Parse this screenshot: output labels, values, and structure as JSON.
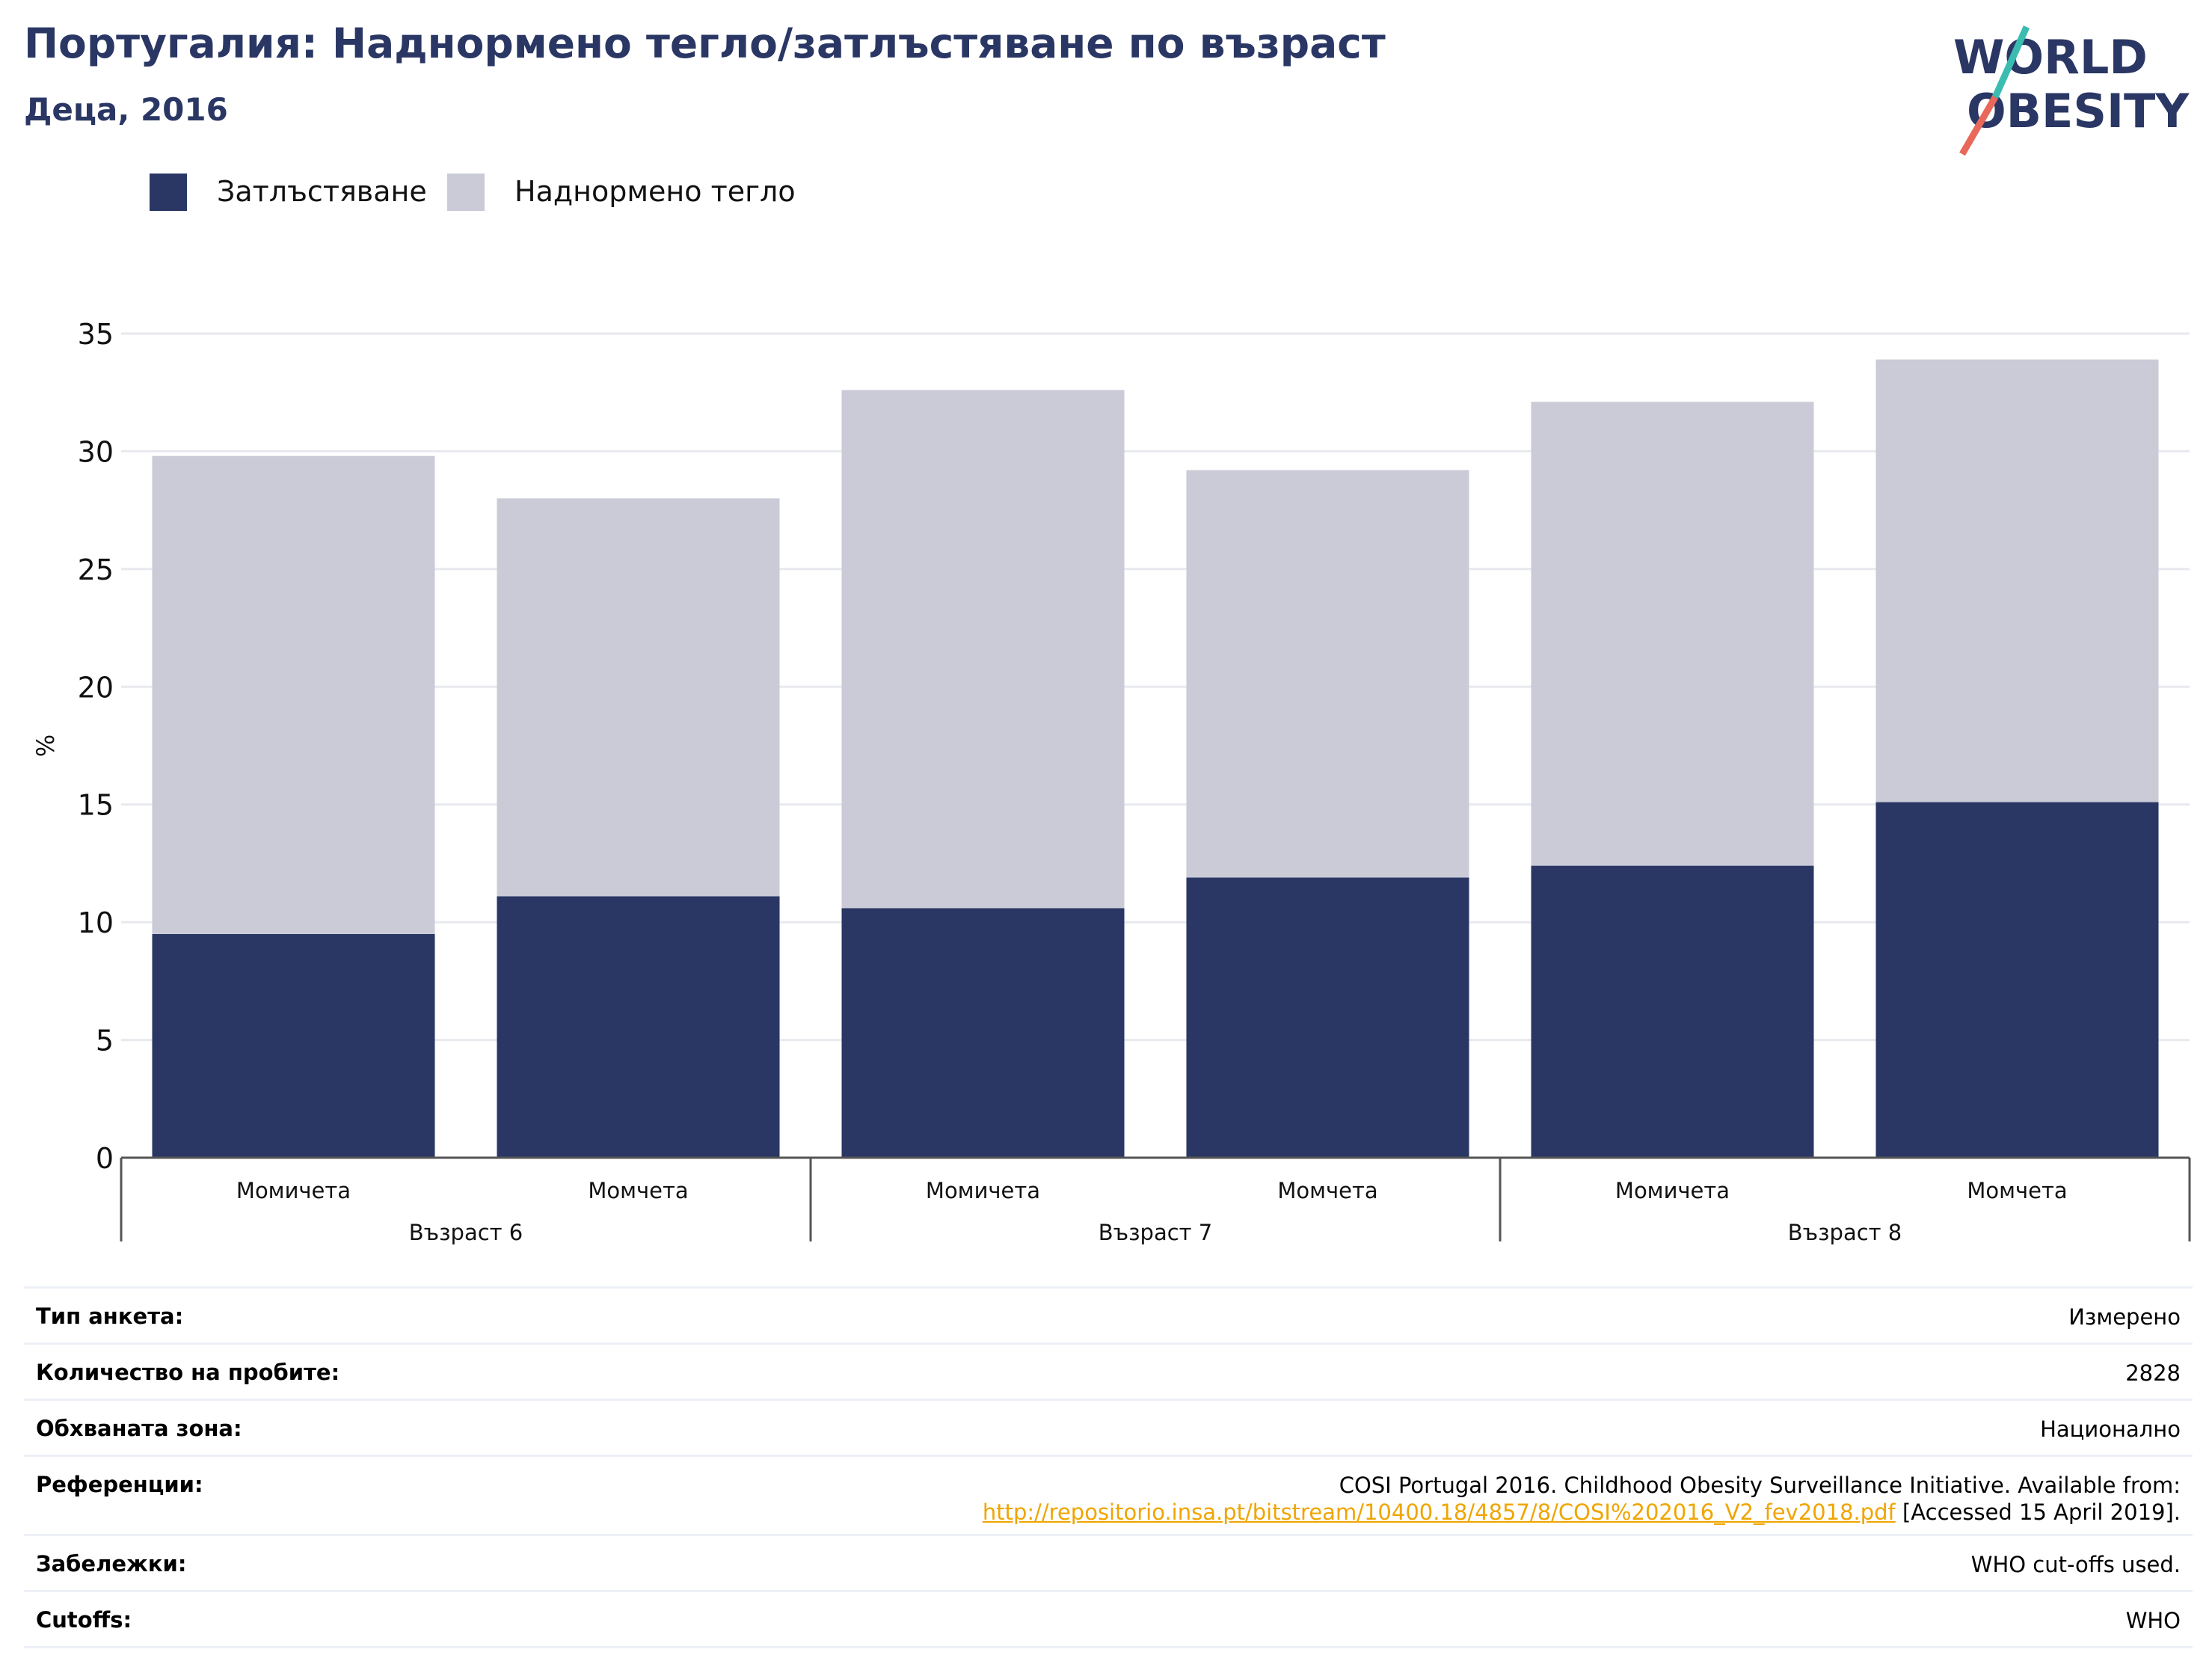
{
  "header": {
    "title": "Португалия: Наднормено тегло/затлъстяване по възраст",
    "subtitle": "Деца, 2016"
  },
  "logo": {
    "line1": "WORLD",
    "line2": "OBESITY"
  },
  "legend": {
    "items": [
      {
        "label": "Затлъстяване",
        "color": "#2a3764"
      },
      {
        "label": "Наднормено тегло",
        "color": "#cacbd7"
      }
    ]
  },
  "chart_data": {
    "type": "bar",
    "stacked": true,
    "ylabel": "%",
    "ylim": [
      0,
      35
    ],
    "yticks": [
      0,
      5,
      10,
      15,
      20,
      25,
      30,
      35
    ],
    "grid": true,
    "legend_position": "top-left",
    "groups": [
      "Възраст 6",
      "Възраст 7",
      "Възраст 8"
    ],
    "categories": [
      "Момичета",
      "Момчета",
      "Момичета",
      "Момчета",
      "Момичета",
      "Момчета"
    ],
    "category_group": [
      0,
      0,
      1,
      1,
      2,
      2
    ],
    "series": [
      {
        "name": "Затлъстяване",
        "color": "#2a3764",
        "values": [
          9.5,
          11.1,
          10.6,
          11.9,
          12.4,
          15.1
        ]
      },
      {
        "name": "Наднормено тегло",
        "color": "#cacbd7",
        "values": [
          20.3,
          16.9,
          22.0,
          17.3,
          19.7,
          18.8
        ]
      }
    ]
  },
  "info": {
    "rows": [
      {
        "label": "Тип анкета:",
        "value": "Измерено"
      },
      {
        "label": "Количество на пробите:",
        "value": "2828"
      },
      {
        "label": "Обхваната зона:",
        "value": "Национално"
      },
      {
        "label": "Референции:",
        "value_line1": "COSI Portugal 2016. Childhood Obesity Surveillance Initiative. Available from:",
        "link": "http://repositorio.insa.pt/bitstream/10400.18/4857/8/COSI%202016_V2_fev2018.pdf",
        "value_tail": " [Accessed 15 April 2019]."
      },
      {
        "label": "Забележки:",
        "value": "WHO cut-offs used."
      },
      {
        "label": "Cutoffs:",
        "value": "WHO"
      }
    ]
  }
}
